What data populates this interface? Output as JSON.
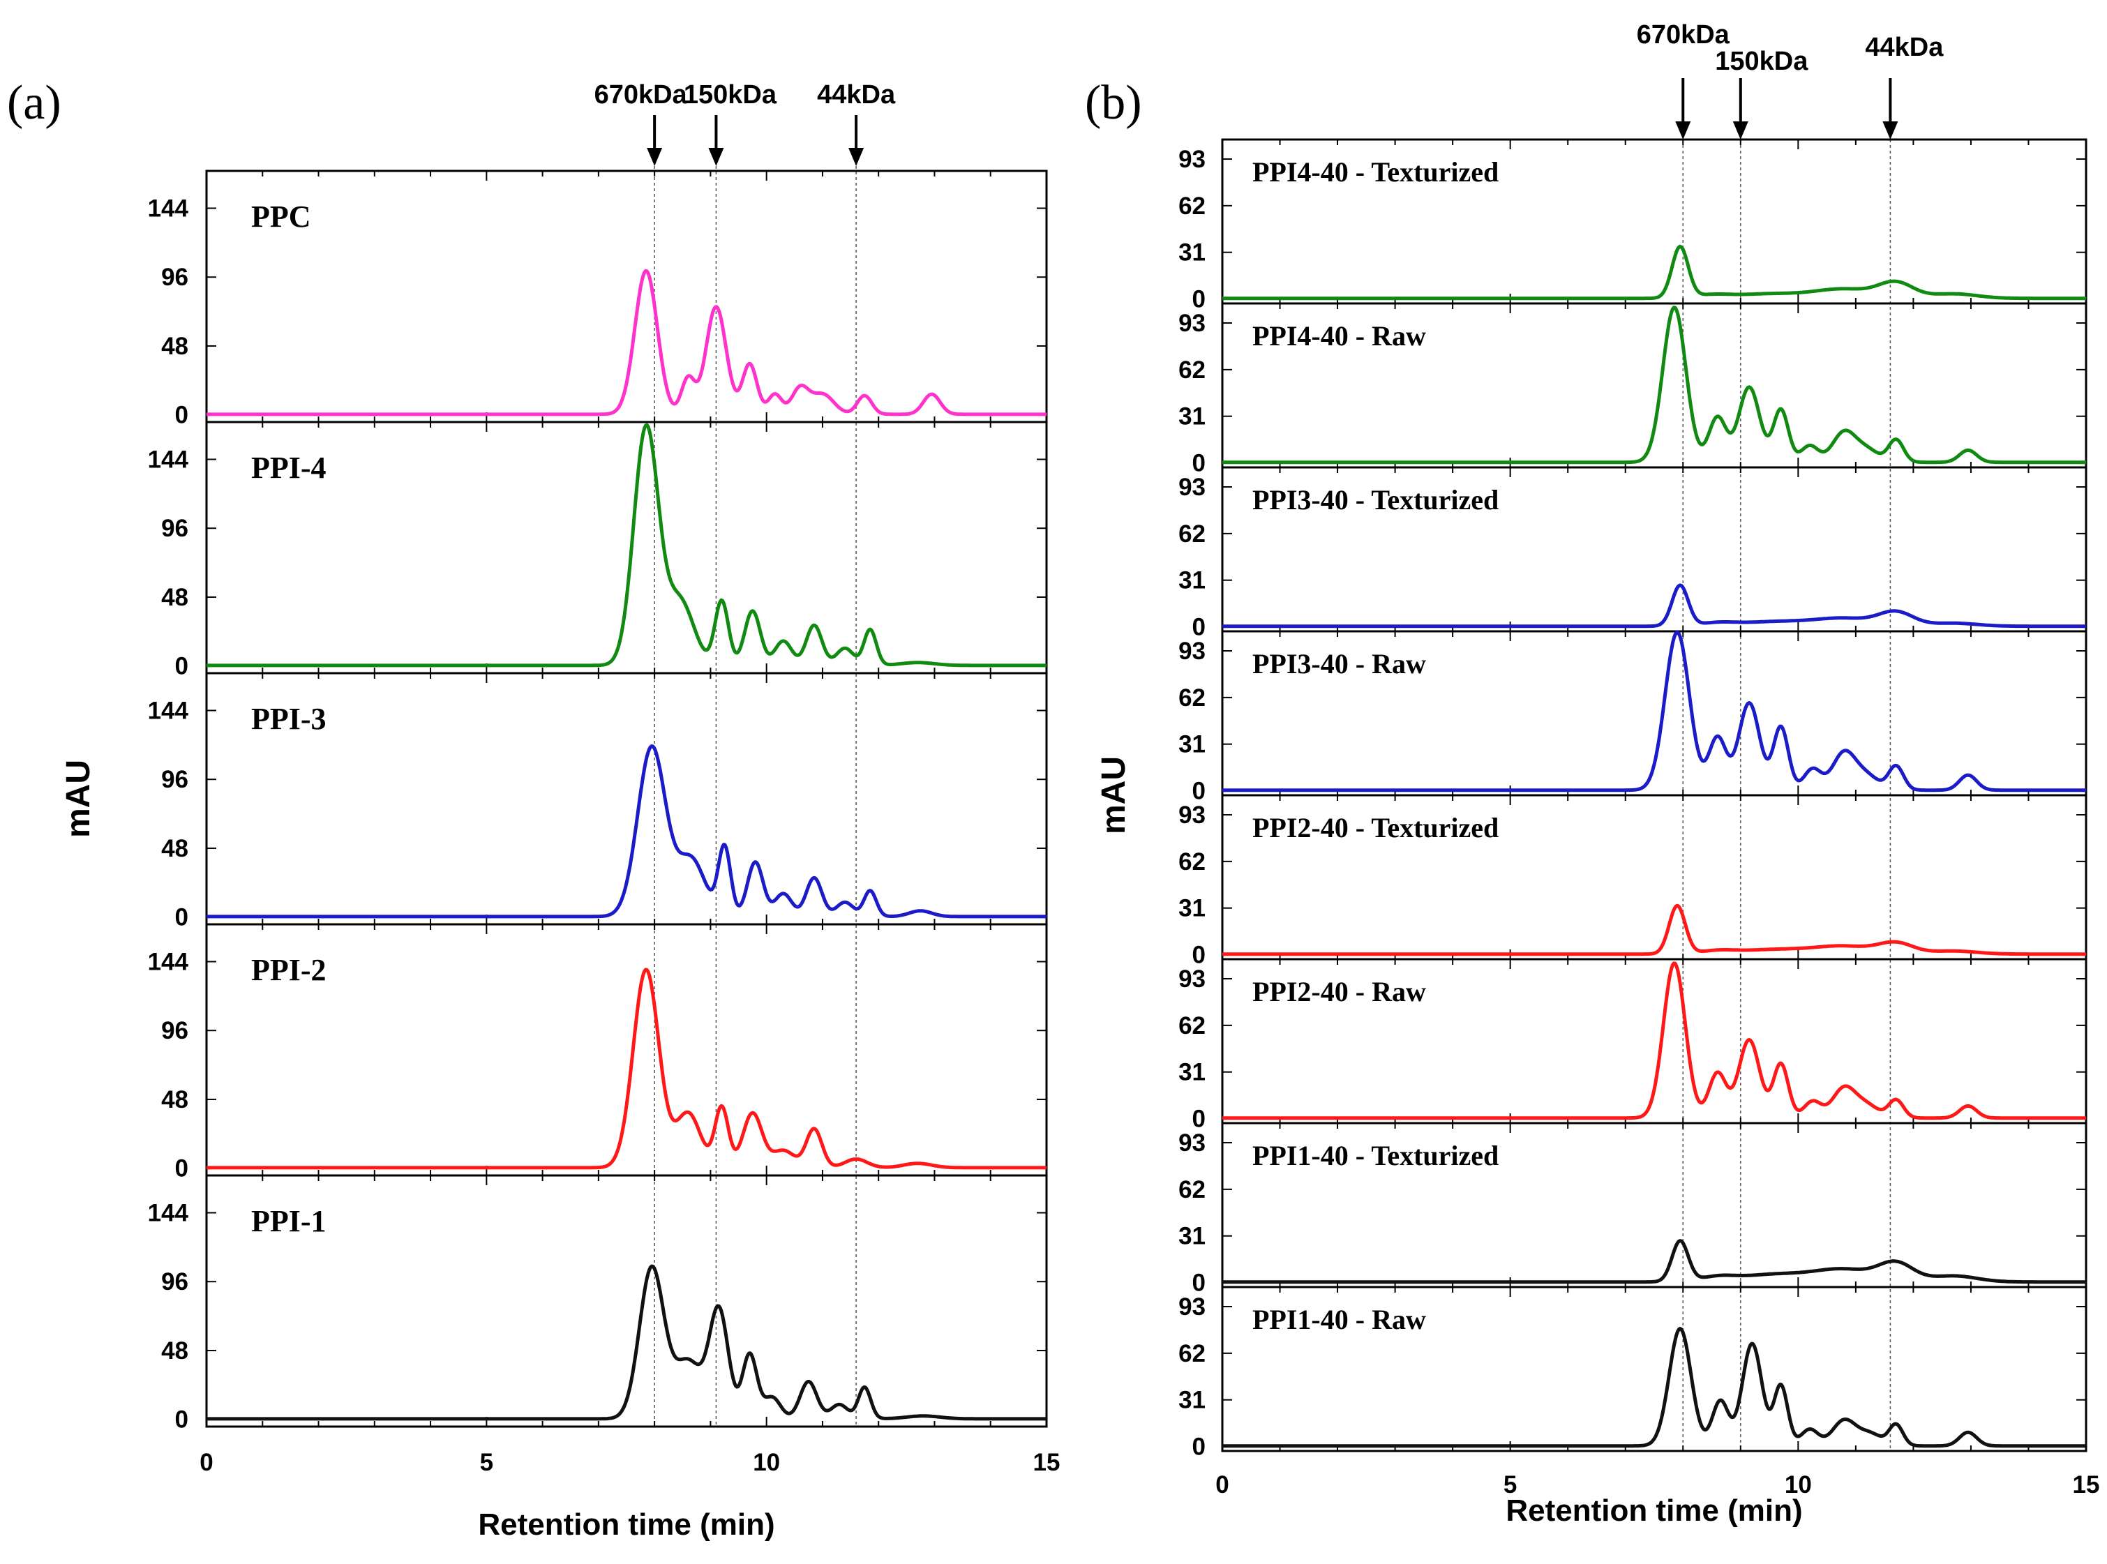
{
  "chart_data": [
    {
      "panel_label": "(a)",
      "type": "line",
      "xlabel": "Retention time (min)",
      "ylabel": "mAU",
      "xlim": [
        0,
        15
      ],
      "x_ticks": [
        "0",
        "5",
        "10",
        "15"
      ],
      "ylim": [
        -5,
        170
      ],
      "y_ticks": [
        "0",
        "48",
        "96",
        "144"
      ],
      "markers": [
        {
          "label": "670kDa",
          "x": 8.0
        },
        {
          "label": "150kDa",
          "x": 9.1
        },
        {
          "label": "44kDa",
          "x": 11.6
        }
      ],
      "series": [
        {
          "name": "PPC",
          "color": "#ff33cc",
          "peaks": [
            [
              7.85,
              100,
              0.2
            ],
            [
              8.6,
              25,
              0.12
            ],
            [
              9.1,
              75,
              0.18
            ],
            [
              9.7,
              35,
              0.13
            ],
            [
              10.15,
              14,
              0.12
            ],
            [
              10.6,
              18,
              0.15
            ],
            [
              11.0,
              14,
              0.2
            ],
            [
              11.75,
              13,
              0.13
            ],
            [
              12.95,
              14,
              0.15
            ]
          ]
        },
        {
          "name": "PPI-4",
          "color": "#108a10",
          "peaks": [
            [
              7.85,
              165,
              0.22
            ],
            [
              8.45,
              45,
              0.25
            ],
            [
              9.2,
              45,
              0.12
            ],
            [
              9.75,
              38,
              0.14
            ],
            [
              10.3,
              17,
              0.15
            ],
            [
              10.85,
              28,
              0.14
            ],
            [
              11.4,
              12,
              0.15
            ],
            [
              11.85,
              25,
              0.11
            ],
            [
              12.7,
              2,
              0.3
            ]
          ]
        },
        {
          "name": "PPI-3",
          "color": "#1b1bc8",
          "peaks": [
            [
              7.95,
              118,
              0.25
            ],
            [
              8.65,
              40,
              0.25
            ],
            [
              9.25,
              48,
              0.11
            ],
            [
              9.8,
              38,
              0.14
            ],
            [
              10.3,
              16,
              0.15
            ],
            [
              10.85,
              27,
              0.14
            ],
            [
              11.4,
              10,
              0.15
            ],
            [
              11.85,
              18,
              0.11
            ],
            [
              12.75,
              4,
              0.2
            ]
          ]
        },
        {
          "name": "PPI-2",
          "color": "#ff1818",
          "peaks": [
            [
              7.85,
              138,
              0.23
            ],
            [
              8.6,
              38,
              0.22
            ],
            [
              9.2,
              42,
              0.12
            ],
            [
              9.75,
              38,
              0.17
            ],
            [
              10.3,
              12,
              0.2
            ],
            [
              10.85,
              27,
              0.14
            ],
            [
              11.6,
              6,
              0.2
            ],
            [
              12.7,
              3,
              0.25
            ]
          ]
        },
        {
          "name": "PPI-1",
          "color": "#111111",
          "peaks": [
            [
              7.95,
              105,
              0.22
            ],
            [
              8.6,
              40,
              0.25
            ],
            [
              9.15,
              75,
              0.17
            ],
            [
              9.7,
              45,
              0.13
            ],
            [
              10.1,
              15,
              0.15
            ],
            [
              10.75,
              26,
              0.15
            ],
            [
              11.3,
              10,
              0.15
            ],
            [
              11.75,
              22,
              0.11
            ],
            [
              12.8,
              2,
              0.3
            ]
          ]
        }
      ]
    },
    {
      "panel_label": "(b)",
      "type": "line",
      "xlabel": "Retention time (min)",
      "ylabel": "mAU",
      "xlim": [
        0,
        15
      ],
      "x_ticks": [
        "0",
        "5",
        "10",
        "15"
      ],
      "ylim": [
        -3,
        106
      ],
      "y_ticks": [
        "0",
        "31",
        "62",
        "93"
      ],
      "markers": [
        {
          "label": "670kDa",
          "x": 8.0
        },
        {
          "label": "150kDa",
          "x": 9.0
        },
        {
          "label": "44kDa",
          "x": 11.6
        }
      ],
      "series": [
        {
          "name": "PPI4-40 - Texturized",
          "color": "#108a10",
          "peaks": [
            [
              7.95,
              34,
              0.14
            ],
            [
              8.5,
              2,
              0.3
            ],
            [
              9.5,
              3,
              0.6
            ],
            [
              10.8,
              6,
              0.5
            ],
            [
              11.7,
              10,
              0.3
            ],
            [
              12.7,
              3,
              0.4
            ]
          ]
        },
        {
          "name": "PPI4-40 - Raw",
          "color": "#108a10",
          "peaks": [
            [
              7.85,
              103,
              0.2
            ],
            [
              8.6,
              30,
              0.15
            ],
            [
              9.15,
              50,
              0.18
            ],
            [
              9.7,
              35,
              0.13
            ],
            [
              10.2,
              11,
              0.15
            ],
            [
              10.8,
              20,
              0.2
            ],
            [
              11.2,
              8,
              0.2
            ],
            [
              11.7,
              15,
              0.13
            ],
            [
              12.95,
              8,
              0.15
            ]
          ]
        },
        {
          "name": "PPI3-40 - Texturized",
          "color": "#1b1bc8",
          "peaks": [
            [
              7.95,
              27,
              0.14
            ],
            [
              8.6,
              2,
              0.3
            ],
            [
              9.6,
              3,
              0.6
            ],
            [
              10.8,
              5,
              0.5
            ],
            [
              11.7,
              9,
              0.3
            ],
            [
              12.7,
              2,
              0.4
            ]
          ]
        },
        {
          "name": "PPI3-40 - Raw",
          "color": "#1b1bc8",
          "peaks": [
            [
              7.9,
              105,
              0.21
            ],
            [
              8.6,
              35,
              0.15
            ],
            [
              9.15,
              58,
              0.18
            ],
            [
              9.7,
              42,
              0.13
            ],
            [
              10.25,
              14,
              0.15
            ],
            [
              10.8,
              25,
              0.2
            ],
            [
              11.2,
              9,
              0.2
            ],
            [
              11.7,
              16,
              0.13
            ],
            [
              12.95,
              10,
              0.15
            ]
          ]
        },
        {
          "name": "PPI2-40 - Texturized",
          "color": "#ff1818",
          "peaks": [
            [
              7.9,
              32,
              0.14
            ],
            [
              8.6,
              2,
              0.3
            ],
            [
              9.6,
              3,
              0.6
            ],
            [
              10.8,
              5,
              0.5
            ],
            [
              11.7,
              7,
              0.3
            ],
            [
              12.7,
              2,
              0.4
            ]
          ]
        },
        {
          "name": "PPI2-40 - Raw",
          "color": "#ff1818",
          "peaks": [
            [
              7.85,
              103,
              0.19
            ],
            [
              8.6,
              30,
              0.15
            ],
            [
              9.15,
              52,
              0.18
            ],
            [
              9.7,
              36,
              0.13
            ],
            [
              10.25,
              11,
              0.15
            ],
            [
              10.8,
              20,
              0.2
            ],
            [
              11.2,
              8,
              0.2
            ],
            [
              11.7,
              12,
              0.13
            ],
            [
              12.95,
              8,
              0.15
            ]
          ]
        },
        {
          "name": "PPI1-40 - Texturized",
          "color": "#111111",
          "peaks": [
            [
              7.95,
              27,
              0.14
            ],
            [
              8.6,
              3,
              0.3
            ],
            [
              9.6,
              5,
              0.6
            ],
            [
              10.8,
              8,
              0.5
            ],
            [
              11.7,
              12,
              0.3
            ],
            [
              12.7,
              4,
              0.4
            ]
          ]
        },
        {
          "name": "PPI1-40 - Raw",
          "color": "#111111",
          "peaks": [
            [
              7.95,
              78,
              0.19
            ],
            [
              8.65,
              30,
              0.14
            ],
            [
              9.2,
              68,
              0.17
            ],
            [
              9.7,
              40,
              0.12
            ],
            [
              10.2,
              11,
              0.15
            ],
            [
              10.8,
              17,
              0.2
            ],
            [
              11.25,
              8,
              0.2
            ],
            [
              11.7,
              14,
              0.12
            ],
            [
              12.95,
              9,
              0.15
            ]
          ]
        }
      ]
    }
  ]
}
